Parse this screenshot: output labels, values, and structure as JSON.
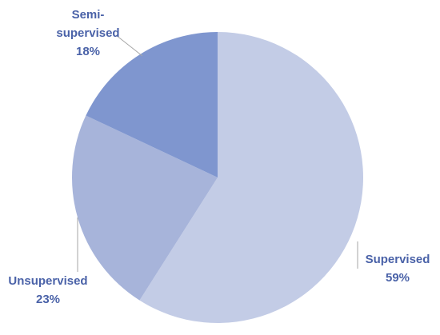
{
  "chart_data": {
    "type": "pie",
    "categories": [
      "Supervised",
      "Unsupervised",
      "Semi-supervised"
    ],
    "values": [
      59,
      23,
      18
    ],
    "value_labels": [
      "59%",
      "23%",
      "18%"
    ],
    "colors": [
      "#c3cce6",
      "#a7b4da",
      "#7f96cf"
    ]
  }
}
